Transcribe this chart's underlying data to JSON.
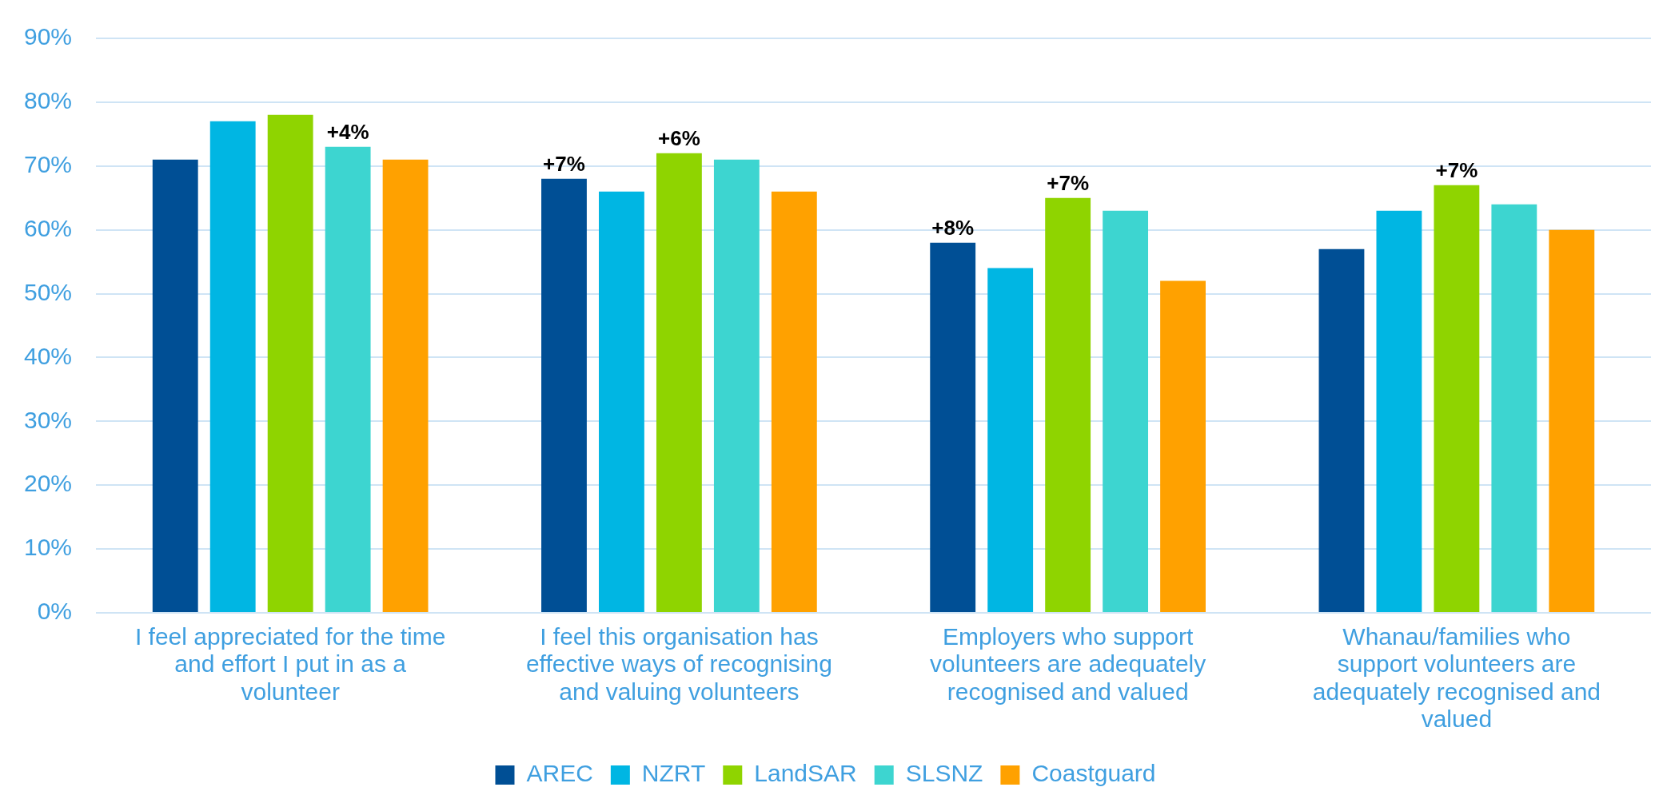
{
  "chart_data": {
    "type": "bar",
    "categories": [
      "I feel appreciated for the time and effort I put in as a volunteer",
      "I feel this organisation has effective ways of recognising and valuing volunteers",
      "Employers who support volunteers are adequately recognised and valued",
      "Whanau/families who support volunteers are adequately recognised and valued"
    ],
    "series": [
      {
        "name": "AREC",
        "color": "#004f95",
        "values": [
          71,
          68,
          58,
          57
        ]
      },
      {
        "name": "NZRT",
        "color": "#00b6e3",
        "values": [
          77,
          66,
          54,
          63
        ]
      },
      {
        "name": "LandSAR",
        "color": "#8fd400",
        "values": [
          78,
          72,
          65,
          67
        ]
      },
      {
        "name": "SLSNZ",
        "color": "#3dd5d0",
        "values": [
          73,
          71,
          63,
          64
        ]
      },
      {
        "name": "Coastguard",
        "color": "#ffa100",
        "values": [
          71,
          66,
          52,
          60
        ]
      }
    ],
    "ylim": [
      0,
      90
    ],
    "yticks": [
      {
        "value": 0,
        "label": "0%"
      },
      {
        "value": 10,
        "label": "10%"
      },
      {
        "value": 20,
        "label": "20%"
      },
      {
        "value": 30,
        "label": "30%"
      },
      {
        "value": 40,
        "label": "40%"
      },
      {
        "value": 50,
        "label": "50%"
      },
      {
        "value": 60,
        "label": "60%"
      },
      {
        "value": 70,
        "label": "70%"
      },
      {
        "value": 80,
        "label": "80%"
      },
      {
        "value": 90,
        "label": "90%"
      }
    ],
    "grid": "y",
    "legend": "bottom",
    "annotations": [
      "+4%",
      "+7%",
      "+6%",
      "+8%",
      "+7%",
      "+7%"
    ]
  }
}
